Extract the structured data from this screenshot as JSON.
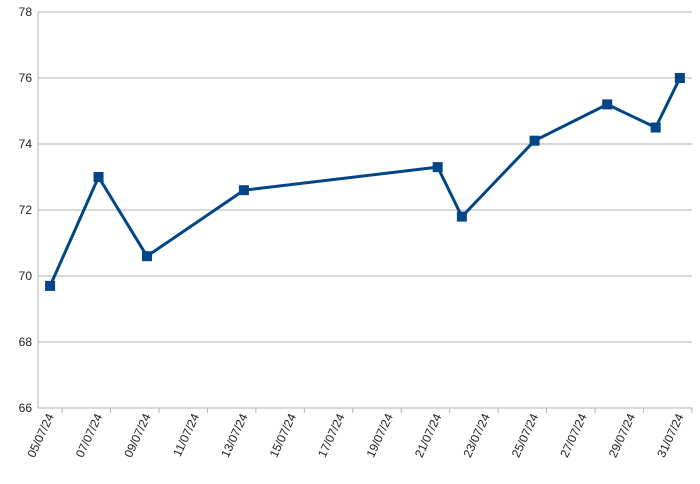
{
  "chart_data": {
    "type": "line",
    "x": [
      "05/07/24",
      "07/07/24",
      "09/07/24",
      "13/07/24",
      "21/07/24",
      "22/07/24",
      "25/07/24",
      "28/07/24",
      "30/07/24",
      "31/07/24"
    ],
    "series": [
      {
        "color": "#004586",
        "values": [
          69.7,
          73.0,
          70.6,
          72.6,
          73.3,
          71.8,
          74.1,
          75.2,
          74.5,
          76.0
        ]
      }
    ],
    "xticks": [
      "05/07/24",
      "07/07/24",
      "09/07/24",
      "11/07/24",
      "13/07/24",
      "15/07/24",
      "17/07/24",
      "19/07/24",
      "21/07/24",
      "23/07/24",
      "25/07/24",
      "27/07/24",
      "29/07/24",
      "31/07/24"
    ],
    "ylim": [
      66,
      78
    ],
    "yticks": [
      66,
      68,
      70,
      72,
      74,
      76,
      78
    ],
    "grid": true
  }
}
